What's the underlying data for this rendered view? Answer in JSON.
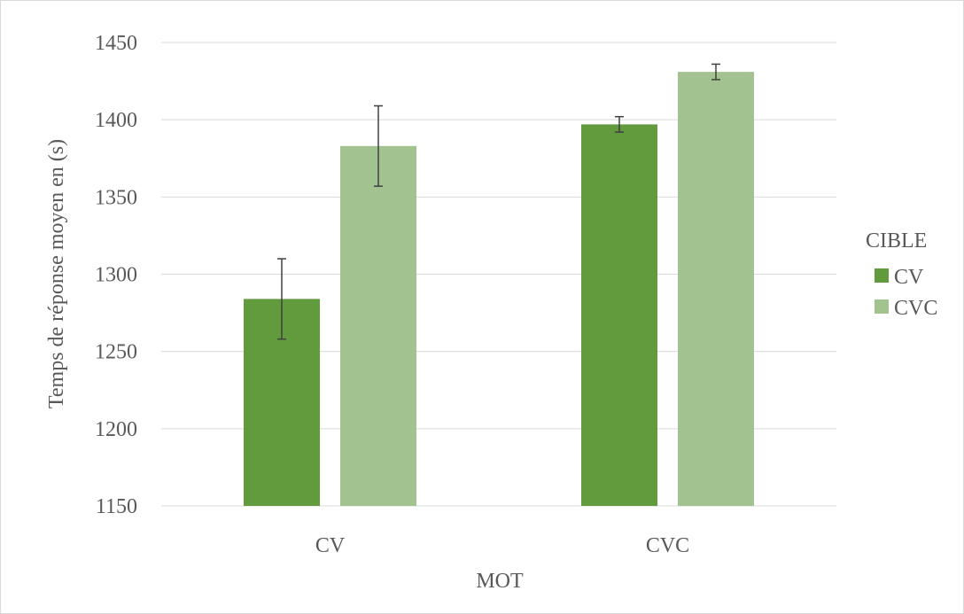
{
  "chart_data": {
    "type": "bar",
    "title": "",
    "xlabel": "MOT",
    "ylabel": "Temps de réponse moyen en (s)",
    "categories": [
      "CV",
      "CVC"
    ],
    "series": [
      {
        "name": "CV",
        "values": [
          1284,
          1397
        ],
        "error": [
          26,
          5
        ],
        "color": "#629a3e"
      },
      {
        "name": "CVC",
        "values": [
          1383,
          1431
        ],
        "error": [
          26,
          5
        ],
        "color": "#a2c38f"
      }
    ],
    "ylim": [
      1150,
      1450
    ],
    "yticks": [
      1150,
      1200,
      1250,
      1300,
      1350,
      1400,
      1450
    ],
    "grid": true,
    "legend": {
      "title": "CIBLE",
      "placement": "right"
    }
  }
}
